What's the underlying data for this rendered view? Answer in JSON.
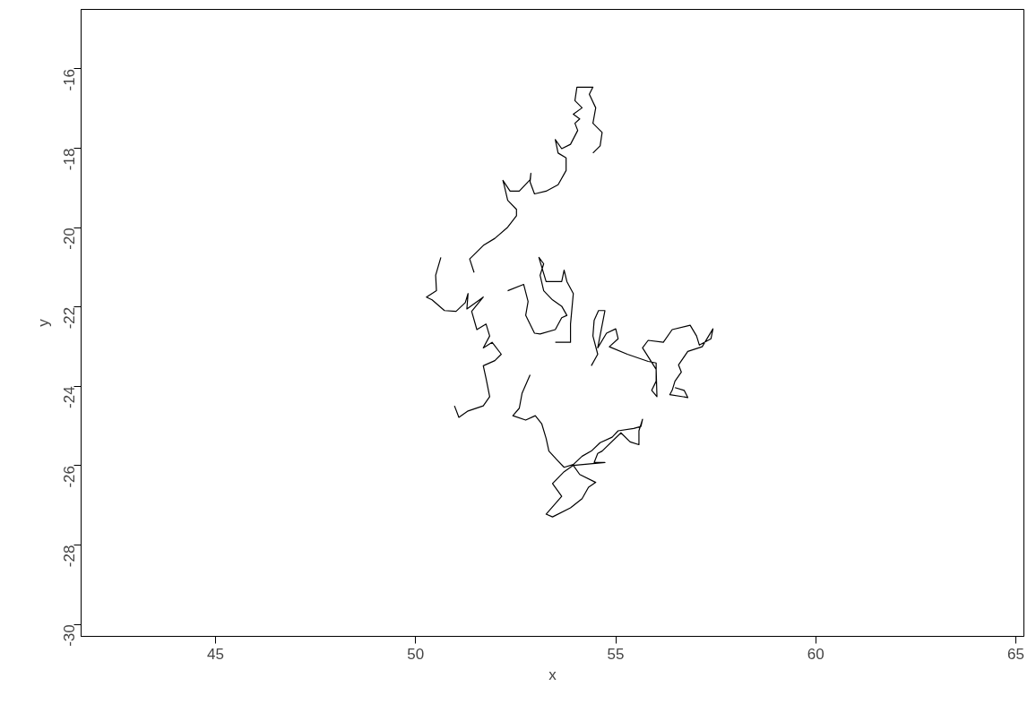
{
  "chart_data": {
    "type": "line",
    "xlabel": "x",
    "ylabel": "y",
    "xlim": [
      41.64,
      65.2
    ],
    "ylim": [
      -30.3,
      -14.5
    ],
    "xticks": [
      45,
      50,
      55,
      60,
      65
    ],
    "yticks": [
      -30,
      -28,
      -26,
      -24,
      -22,
      -20,
      -18,
      -16
    ],
    "series": [
      {
        "color": "#000000",
        "x": [
          54.43,
          54.61,
          54.66,
          54.43,
          54.5,
          54.34,
          54.43,
          54.03,
          53.98,
          54.16,
          53.94,
          54.1,
          53.98,
          54.05,
          53.87,
          53.65,
          53.49,
          53.56,
          53.76,
          53.76,
          53.56,
          53.26,
          52.97,
          52.86,
          52.88,
          52.86,
          52.59,
          52.36,
          52.18,
          52.21,
          52.3,
          52.52,
          52.52,
          52.3,
          51.98,
          51.69,
          51.35,
          51.46,
          null,
          50.63,
          50.5,
          50.52,
          50.27,
          50.41,
          50.72,
          51.01,
          51.24,
          51.31,
          51.28,
          51.69,
          51.4,
          51.53,
          51.76,
          51.85,
          51.69,
          51.91,
          52.14,
          51.98,
          51.69,
          51.76,
          51.85,
          51.69,
          51.31,
          51.08,
          50.97,
          null,
          52.3,
          52.7,
          52.81,
          52.75,
          52.97,
          53.11,
          53.49,
          53.65,
          53.78,
          53.65,
          53.42,
          53.2,
          53.11,
          53.2,
          53.08,
          53.26,
          53.65,
          53.71,
          53.78,
          53.94,
          53.87,
          53.87,
          53.49,
          null,
          54.39,
          54.55,
          54.43,
          54.46,
          54.57,
          54.73,
          54.55,
          54.77,
          55.0,
          55.06,
          54.84,
          55.29,
          55.81,
          56.01,
          56.01,
          55.9,
          56.03,
          56.01,
          55.67,
          55.81,
          56.19,
          56.41,
          56.86,
          57.02,
          57.09,
          57.38,
          57.43,
          57.16,
          56.8,
          56.57,
          56.64,
          56.48,
          56.41,
          56.35,
          56.8,
          56.71,
          56.48,
          null,
          52.86,
          52.66,
          52.59,
          52.43,
          52.75,
          52.99,
          53.15,
          53.26,
          53.33,
          53.53,
          53.71,
          53.94,
          54.16,
          54.39,
          54.61,
          54.91,
          55.06,
          55.45,
          55.63,
          55.67,
          55.58,
          55.58,
          55.36,
          55.13,
          54.66,
          54.55,
          54.46,
          54.73,
          53.94,
          53.71,
          53.42,
          53.65,
          53.26,
          53.42,
          53.87,
          54.16,
          54.32,
          54.5,
          54.1,
          53.94
        ],
        "values": [
          -18.12,
          -17.94,
          -17.6,
          -17.37,
          -16.98,
          -16.64,
          -16.46,
          -16.46,
          -16.8,
          -16.98,
          -17.14,
          -17.26,
          -17.37,
          -17.55,
          -17.9,
          -18.01,
          -17.78,
          -18.12,
          -18.24,
          -18.56,
          -18.92,
          -19.08,
          -19.15,
          -18.85,
          -18.63,
          -18.79,
          -19.08,
          -19.08,
          -18.81,
          -18.92,
          -19.31,
          -19.54,
          -19.7,
          -19.99,
          -20.27,
          -20.45,
          -20.79,
          -21.13,
          null,
          -20.75,
          -21.2,
          -21.59,
          -21.75,
          -21.82,
          -22.09,
          -22.11,
          -21.89,
          -21.66,
          -22.05,
          -21.75,
          -22.11,
          -22.57,
          -22.43,
          -22.73,
          -23.03,
          -22.89,
          -23.19,
          -23.35,
          -23.48,
          -23.8,
          -24.26,
          -24.49,
          -24.62,
          -24.78,
          -24.49,
          null,
          -21.59,
          -21.43,
          -21.86,
          -22.21,
          -22.66,
          -22.68,
          -22.57,
          -22.27,
          -22.21,
          -21.98,
          -21.82,
          -21.59,
          -21.2,
          -20.91,
          -20.75,
          -21.36,
          -21.36,
          -21.07,
          -21.36,
          -21.66,
          -22.43,
          -22.89,
          -22.89,
          null,
          -23.48,
          -23.19,
          -22.73,
          -22.34,
          -22.09,
          -22.09,
          -23.03,
          -22.66,
          -22.55,
          -22.8,
          -23.0,
          -23.19,
          -23.37,
          -23.41,
          -23.87,
          -24.1,
          -24.26,
          -23.57,
          -23.03,
          -22.84,
          -22.89,
          -22.57,
          -22.46,
          -22.73,
          -22.96,
          -22.8,
          -22.55,
          -23.0,
          -23.12,
          -23.46,
          -23.64,
          -23.87,
          -24.1,
          -24.21,
          -24.28,
          -24.1,
          -24.03,
          null,
          -23.71,
          -24.17,
          -24.55,
          -24.74,
          -24.85,
          -24.74,
          -24.94,
          -25.31,
          -25.63,
          -25.85,
          -26.04,
          -25.97,
          -25.76,
          -25.63,
          -25.42,
          -25.28,
          -25.12,
          -25.06,
          -25.01,
          -24.83,
          -25.12,
          -25.47,
          -25.4,
          -25.17,
          -25.63,
          -25.69,
          -25.92,
          -25.92,
          -25.99,
          -26.15,
          -26.45,
          -26.77,
          -27.22,
          -27.29,
          -27.06,
          -26.83,
          -26.54,
          -26.42,
          -26.22,
          -25.99
        ]
      }
    ]
  }
}
